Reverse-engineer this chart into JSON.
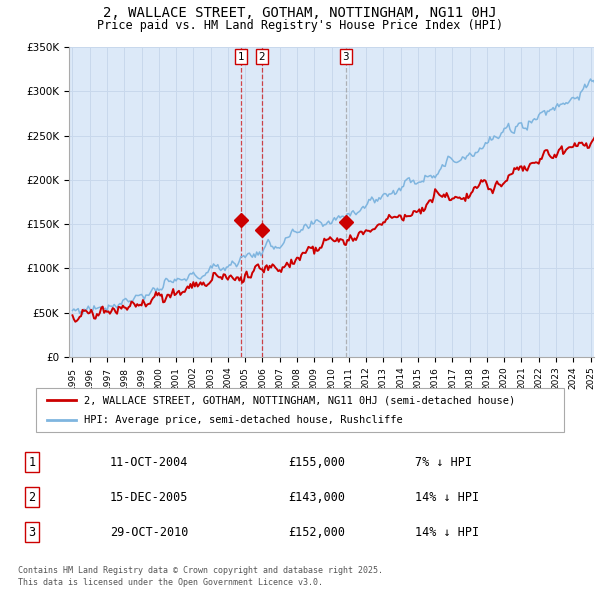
{
  "title": "2, WALLACE STREET, GOTHAM, NOTTINGHAM, NG11 0HJ",
  "subtitle": "Price paid vs. HM Land Registry's House Price Index (HPI)",
  "title_fontsize": 10,
  "subtitle_fontsize": 8.5,
  "x_start_year": 1995,
  "x_end_year": 2025,
  "y_min": 0,
  "y_max": 350000,
  "y_ticks": [
    0,
    50000,
    100000,
    150000,
    200000,
    250000,
    300000,
    350000
  ],
  "y_tick_labels": [
    "£0",
    "£50K",
    "£100K",
    "£150K",
    "£200K",
    "£250K",
    "£300K",
    "£350K"
  ],
  "background_color": "#dce9f8",
  "fig_bg_color": "#ffffff",
  "grid_color": "#c8d8ec",
  "hpi_line_color": "#7fb5df",
  "price_line_color": "#cc0000",
  "marker_color": "#cc0000",
  "vline1_color": "#cc0000",
  "vline3_color": "#999999",
  "transaction1_date": 2004.78,
  "transaction1_price": 155000,
  "transaction2_date": 2005.96,
  "transaction2_price": 143000,
  "transaction3_date": 2010.83,
  "transaction3_price": 152000,
  "legend_label_price": "2, WALLACE STREET, GOTHAM, NOTTINGHAM, NG11 0HJ (semi-detached house)",
  "legend_label_hpi": "HPI: Average price, semi-detached house, Rushcliffe",
  "table_rows": [
    {
      "num": "1",
      "date": "11-OCT-2004",
      "price": "£155,000",
      "change": "7% ↓ HPI"
    },
    {
      "num": "2",
      "date": "15-DEC-2005",
      "price": "£143,000",
      "change": "14% ↓ HPI"
    },
    {
      "num": "3",
      "date": "29-OCT-2010",
      "price": "£152,000",
      "change": "14% ↓ HPI"
    }
  ],
  "footer": "Contains HM Land Registry data © Crown copyright and database right 2025.\nThis data is licensed under the Open Government Licence v3.0.",
  "marker_size": 7
}
